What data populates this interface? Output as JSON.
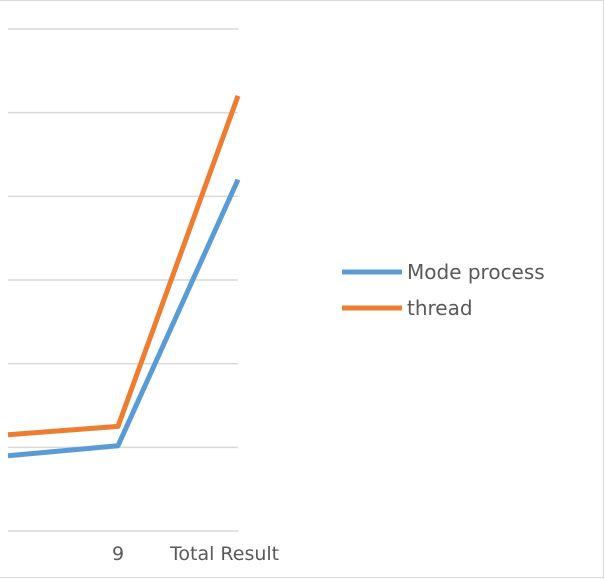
{
  "chart_data": {
    "type": "line",
    "categories": [
      "",
      "9",
      "Total Result"
    ],
    "series": [
      {
        "name": "Mode process",
        "color": "#5b9bd5",
        "values": [
          0.9,
          1.02,
          4.2
        ]
      },
      {
        "name": " thread",
        "color": "#ed7d31",
        "values": [
          1.15,
          1.25,
          5.2
        ]
      }
    ],
    "ylim": [
      0,
      6
    ],
    "grid": true,
    "legend_position": "right",
    "y_tick_labels_visible": false
  }
}
